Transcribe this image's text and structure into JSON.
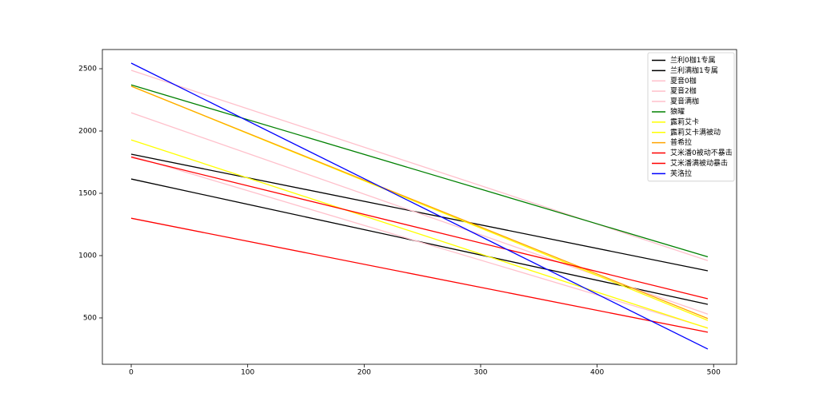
{
  "chart_data": {
    "type": "line",
    "x": [
      0,
      495
    ],
    "xlim": [
      -24.75,
      519.75
    ],
    "ylim": [
      128,
      2654
    ],
    "xticks": [
      0,
      100,
      200,
      300,
      400,
      500
    ],
    "yticks": [
      500,
      1000,
      1500,
      2000,
      2500
    ],
    "legend": "upper right",
    "series": [
      {
        "name": "兰利0枷1专属",
        "color": "#000000",
        "values": [
          1615,
          609
        ]
      },
      {
        "name": "兰利满枷1专属",
        "color": "#000000",
        "values": [
          1814,
          878
        ]
      },
      {
        "name": "夏音0枷",
        "color": "#ffc0cb",
        "values": [
          1800,
          420
        ]
      },
      {
        "name": "夏音2枷",
        "color": "#ffc0cb",
        "values": [
          2147,
          530
        ]
      },
      {
        "name": "夏音满枷",
        "color": "#ffc0cb",
        "values": [
          2487,
          960
        ]
      },
      {
        "name": "狼曜",
        "color": "#008000",
        "values": [
          2370,
          990
        ]
      },
      {
        "name": "露莉艾卡",
        "color": "#ffff00",
        "values": [
          1929,
          417
        ]
      },
      {
        "name": "露莉艾卡满被动",
        "color": "#ffff00",
        "values": [
          2360,
          480
        ]
      },
      {
        "name": "普希拉",
        "color": "#ffa500",
        "values": [
          2360,
          495
        ]
      },
      {
        "name": "艾米潘0被动不暴击",
        "color": "#ff0000",
        "values": [
          1300,
          385
        ]
      },
      {
        "name": "艾米潘满被动暴击",
        "color": "#ff0000",
        "values": [
          1790,
          654
        ]
      },
      {
        "name": "芙洛拉",
        "color": "#0000ff",
        "values": [
          2545,
          250
        ]
      }
    ]
  }
}
